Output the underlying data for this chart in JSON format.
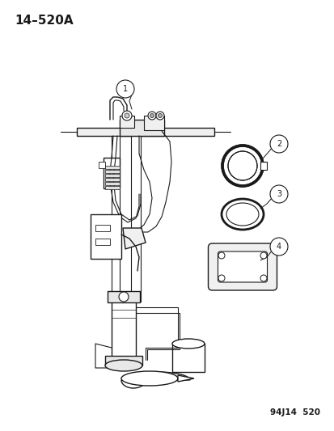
{
  "title_label": "14–520A",
  "footer_label": "94J14  520",
  "bg_color": "#ffffff",
  "line_color": "#1a1a1a",
  "title_fontsize": 11,
  "footer_fontsize": 7.5
}
